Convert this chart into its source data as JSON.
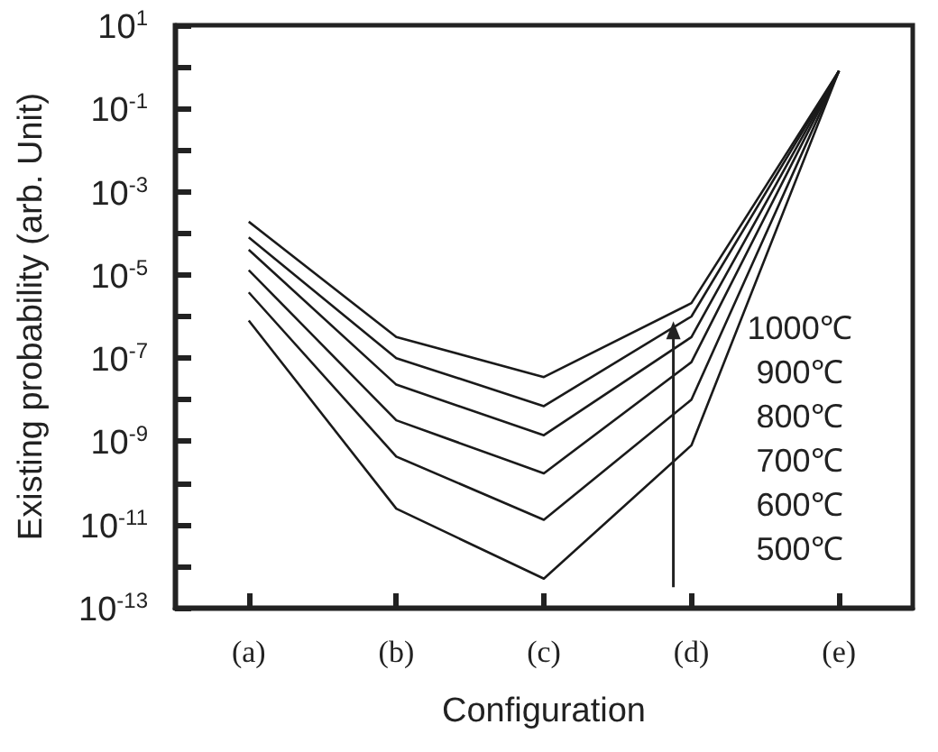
{
  "chart_data": {
    "type": "line",
    "xlabel": "Configuration",
    "ylabel": "Existing probability (arb. Unit)",
    "categories": [
      "(a)",
      "(b)",
      "(c)",
      "(d)",
      "(e)"
    ],
    "series": [
      {
        "color": "#1a1a1a",
        "values": [
          0.00019,
          3.2e-07,
          3.5e-08,
          2.1e-06,
          0.8
        ]
      },
      {
        "color": "#1a1a1a",
        "values": [
          8e-05,
          1e-07,
          7e-09,
          1e-06,
          0.8
        ]
      },
      {
        "color": "#1a1a1a",
        "values": [
          4e-05,
          2.3e-08,
          1.4e-09,
          3.2e-07,
          0.8
        ]
      },
      {
        "color": "#1a1a1a",
        "values": [
          1.3e-05,
          3.2e-09,
          1.7e-10,
          8e-08,
          0.8
        ]
      },
      {
        "color": "#1a1a1a",
        "values": [
          3.8e-06,
          4.3e-10,
          1.3e-11,
          1e-08,
          0.8
        ]
      },
      {
        "color": "#1a1a1a",
        "values": [
          8e-07,
          2.4e-11,
          5e-13,
          8e-10,
          0.8
        ]
      }
    ],
    "annotations": [
      "1000℃",
      "900℃",
      "800℃",
      "700℃",
      "600℃",
      "500℃"
    ],
    "log": "y",
    "ylim": [
      1e-13,
      10
    ],
    "yticks": [
      {
        "value": 10,
        "label": "10$^{1}$"
      },
      {
        "value": 1,
        "label": null
      },
      {
        "value": 0.1,
        "label": "10$^{-1}$"
      },
      {
        "value": 0.01,
        "label": null
      },
      {
        "value": 0.001,
        "label": "10$^{-3}$"
      },
      {
        "value": 0.0001,
        "label": null
      },
      {
        "value": 1e-05,
        "label": "10$^{-5}$"
      },
      {
        "value": 1e-06,
        "label": null
      },
      {
        "value": 1e-07,
        "label": "10$^{-7}$"
      },
      {
        "value": 1e-08,
        "label": null
      },
      {
        "value": 1e-09,
        "label": "10$^{-9}$"
      },
      {
        "value": 1e-10,
        "label": null
      },
      {
        "value": 1e-11,
        "label": "10$^{-11}$"
      },
      {
        "value": 1e-12,
        "label": null
      },
      {
        "value": 1e-13,
        "label": "10$^{-13}$"
      }
    ],
    "grid": false,
    "marker": "none",
    "line_style": "solid"
  }
}
